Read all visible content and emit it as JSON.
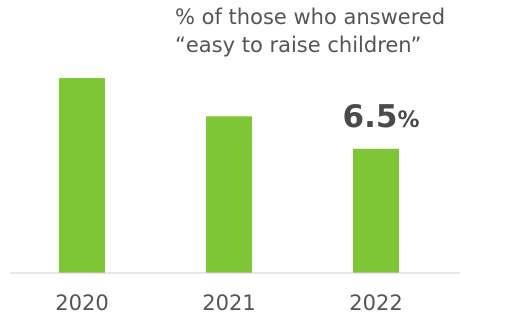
{
  "chart_data": {
    "type": "bar",
    "title": "",
    "subtitle_lines": [
      "% of those who answered",
      "“easy to raise children”"
    ],
    "categories": [
      "2020",
      "2021",
      "2022"
    ],
    "values": [
      10.2,
      8.2,
      6.5
    ],
    "series_color": "#7fc636",
    "axis_color": "#cfcfcf",
    "highlight": {
      "category": "2022",
      "value_text": "6.5",
      "unit": "%"
    },
    "xlabel": "",
    "ylabel": "",
    "ylim": [
      0,
      11.25
    ],
    "grid": false,
    "legend": "none"
  }
}
